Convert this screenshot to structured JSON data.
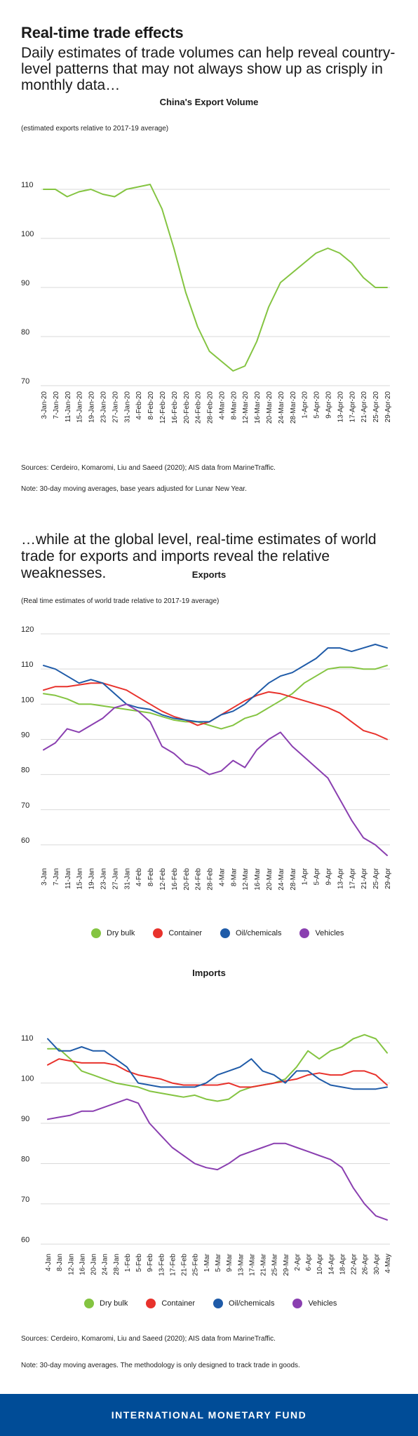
{
  "header": {
    "title": "Real-time trade effects",
    "subtitle1": "Daily estimates of trade volumes can help reveal country-level patterns that may not always show up as crisply in monthly data…",
    "subtitle2": "…while at the global level, real-time estimates of world trade for exports and imports reveal the relative weaknesses."
  },
  "china": {
    "title": "China's Export Volume",
    "note_top": "(estimated exports relative to 2017-19 average)",
    "sources": "Sources: Cerdeiro, Komaromi, Liu and Saeed (2020); AIS data from MarineTraffic.",
    "note": "Note: 30-day moving averages, base years adjusted for Lunar New Year."
  },
  "exports": {
    "title": "Exports",
    "note_top": "(Real time estimates of world trade relative to 2017-19 average)"
  },
  "imports": {
    "title": "Imports",
    "sources": "Sources: Cerdeiro, Komaromi, Liu and Saeed (2020); AIS data from MarineTraffic.",
    "note": "Note:  30-day moving averages. The methodology is only designed to track trade in goods."
  },
  "legend": {
    "dry_bulk": "Dry bulk",
    "container": "Container",
    "oil": "Oil/chemicals",
    "vehicles": "Vehicles"
  },
  "footer": {
    "label": "INTERNATIONAL MONETARY FUND"
  },
  "colors": {
    "green": "#84c441",
    "red": "#e8322c",
    "blue": "#1f5ba8",
    "purple": "#8a3fb0",
    "footer": "#004c97"
  },
  "chart_data": [
    {
      "type": "line",
      "title": "China's Export Volume",
      "ylabel": "(estimated exports relative to 2017-19 average)",
      "ylim": [
        70,
        110
      ],
      "yticks": [
        70,
        80,
        90,
        100,
        110
      ],
      "grid": true,
      "x_ticks": [
        "3-Jan-20",
        "7-Jan-20",
        "11-Jan-20",
        "15-Jan-20",
        "19-Jan-20",
        "23-Jan-20",
        "27-Jan-20",
        "31-Jan-20",
        "4-Feb-20",
        "8-Feb-20",
        "12-Feb-20",
        "16-Feb-20",
        "20-Feb-20",
        "24-Feb-20",
        "28-Feb-20",
        "4-Mar-20",
        "8-Mar-20",
        "12-Mar-20",
        "16-Mar-20",
        "20-Mar-20",
        "24-Mar-20",
        "28-Mar-20",
        "1-Apr-20",
        "5-Apr-20",
        "9-Apr-20",
        "13-Apr-20",
        "17-Apr-20",
        "21-Apr-20",
        "25-Apr-20",
        "29-Apr-20"
      ],
      "series": [
        {
          "values": [
            110,
            110,
            108.5,
            109.5,
            110,
            109,
            108.5,
            110,
            110.5,
            111,
            106,
            98,
            89,
            82,
            77,
            75,
            73,
            74,
            79,
            86,
            91,
            93,
            95,
            97,
            98,
            97,
            95,
            92,
            90,
            90
          ]
        }
      ]
    },
    {
      "type": "line",
      "title": "Exports",
      "ylabel": "(Real time estimates of world trade relative to 2017-19 average)",
      "ylim": [
        55,
        120
      ],
      "yticks": [
        60,
        70,
        80,
        90,
        100,
        110,
        120
      ],
      "grid": true,
      "x_ticks": [
        "3-Jan",
        "7-Jan",
        "11-Jan",
        "15-Jan",
        "19-Jan",
        "23-Jan",
        "27-Jan",
        "31-Jan",
        "4-Feb",
        "8-Feb",
        "12-Feb",
        "16-Feb",
        "20-Feb",
        "24-Feb",
        "28-Feb",
        "4-Mar",
        "8-Mar",
        "12-Mar",
        "16-Mar",
        "20-Mar",
        "24-Mar",
        "28-Mar",
        "1-Apr",
        "5-Apr",
        "9-Apr",
        "13-Apr",
        "17-Apr",
        "21-Apr",
        "25-Apr",
        "29-Apr"
      ],
      "series": [
        {
          "name": "Dry bulk",
          "values": [
            103,
            102.5,
            101.5,
            100,
            100,
            99.5,
            99,
            98.5,
            98,
            97.5,
            96.5,
            95.5,
            95,
            95,
            94,
            93,
            94,
            96,
            97,
            99,
            101,
            103,
            106,
            108,
            110,
            110.5,
            110.5,
            110,
            110,
            111
          ]
        },
        {
          "name": "Container",
          "values": [
            104,
            105,
            105,
            105.5,
            106,
            106,
            105,
            104,
            102,
            100,
            98,
            96.5,
            95.5,
            94,
            95,
            97,
            99,
            101,
            102.5,
            103.5,
            103,
            102,
            101,
            100,
            99,
            97.5,
            95,
            92.5,
            91.5,
            90
          ]
        },
        {
          "name": "Oil/chemicals",
          "values": [
            111,
            110,
            108,
            106,
            107,
            106,
            103,
            100,
            99,
            98.5,
            97,
            96,
            95.5,
            95,
            95,
            97,
            98,
            100,
            103,
            106,
            108,
            109,
            111,
            113,
            116,
            116,
            115,
            116,
            117,
            116
          ]
        },
        {
          "name": "Vehicles",
          "values": [
            87,
            89,
            93,
            92,
            94,
            96,
            99,
            100,
            98,
            95,
            88,
            86,
            83,
            82,
            80,
            81,
            84,
            82,
            87,
            90,
            92,
            88,
            85,
            82,
            79,
            73,
            67,
            62,
            60,
            57
          ]
        }
      ]
    },
    {
      "type": "line",
      "title": "Imports",
      "ylim": [
        59,
        113
      ],
      "yticks": [
        60,
        70,
        80,
        90,
        100,
        110
      ],
      "grid": true,
      "x_ticks": [
        "4-Jan",
        "8-Jan",
        "12-Jan",
        "16-Jan",
        "20-Jan",
        "24-Jan",
        "28-Jan",
        "1-Feb",
        "5-Feb",
        "9-Feb",
        "13-Feb",
        "17-Feb",
        "21-Feb",
        "25-Feb",
        "1-Mar",
        "5-Mar",
        "9-Mar",
        "13-Mar",
        "17-Mar",
        "21-Mar",
        "25-Mar",
        "29-Mar",
        "2-Apr",
        "6-Apr",
        "10-Apr",
        "14-Apr",
        "18-Apr",
        "22-Apr",
        "26-Apr",
        "30-Apr",
        "4-May"
      ],
      "series": [
        {
          "name": "Dry bulk",
          "values": [
            108.5,
            108.5,
            106,
            103,
            102,
            101,
            100,
            99.5,
            99,
            98,
            97.5,
            97,
            96.5,
            97,
            96,
            95.5,
            96,
            98,
            99,
            99.5,
            100,
            101,
            104,
            108,
            106,
            108,
            109,
            111,
            112,
            111,
            107.5
          ]
        },
        {
          "name": "Container",
          "values": [
            104.5,
            106,
            105.5,
            105,
            105,
            105,
            104.5,
            103,
            102,
            101.5,
            101,
            100,
            99.5,
            99.5,
            99.5,
            99.5,
            100,
            99,
            99,
            99.5,
            100,
            100.5,
            101,
            102,
            102.5,
            102,
            102,
            103,
            103,
            102,
            99.5
          ]
        },
        {
          "name": "Oil/chemicals",
          "values": [
            111,
            108,
            108,
            109,
            108,
            108,
            106,
            104,
            100,
            99.5,
            99,
            99,
            99,
            99,
            100,
            102,
            103,
            104,
            106,
            103,
            102,
            100,
            103,
            103,
            101,
            99.5,
            99,
            98.5,
            98.5,
            98.5,
            99
          ]
        },
        {
          "name": "Vehicles",
          "values": [
            91,
            91.5,
            92,
            93,
            93,
            94,
            95,
            96,
            95,
            90,
            87,
            84,
            82,
            80,
            79,
            78.5,
            80,
            82,
            83,
            84,
            85,
            85,
            84,
            83,
            82,
            81,
            79,
            74,
            70,
            67,
            66
          ]
        }
      ]
    }
  ]
}
